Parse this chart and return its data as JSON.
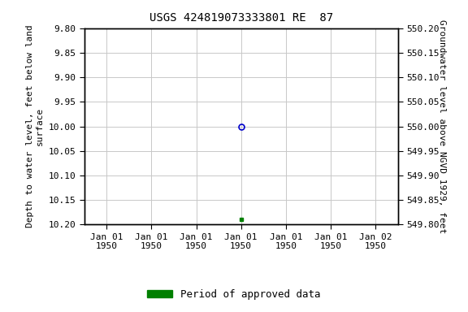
{
  "title": "USGS 424819073333801 RE  87",
  "ylabel_left_line1": "Depth to water level, feet below land",
  "ylabel_left_line2": "surface",
  "ylabel_right": "Groundwater level above NGVD 1929, feet",
  "ylim_left_top": 9.8,
  "ylim_left_bottom": 10.2,
  "ylim_right_top": 550.2,
  "ylim_right_bottom": 549.8,
  "left_ticks": [
    9.8,
    9.85,
    9.9,
    9.95,
    10.0,
    10.05,
    10.1,
    10.15,
    10.2
  ],
  "right_ticks": [
    550.2,
    550.15,
    550.1,
    550.05,
    550.0,
    549.95,
    549.9,
    549.85,
    549.8
  ],
  "point_blue_x": 3,
  "point_blue_y": 10.0,
  "point_green_x": 3,
  "point_green_y": 10.19,
  "x_tick_positions": [
    0,
    1,
    2,
    3,
    4,
    5,
    6
  ],
  "x_tick_labels": [
    "Jan 01\n1950",
    "Jan 01\n1950",
    "Jan 01\n1950",
    "Jan 01\n1950",
    "Jan 01\n1950",
    "Jan 01\n1950",
    "Jan 02\n1950"
  ],
  "xlim": [
    -0.5,
    6.5
  ],
  "bg_color": "#ffffff",
  "grid_color": "#c8c8c8",
  "legend_label": "Period of approved data",
  "legend_color": "#008000",
  "blue_marker_color": "#0000cc",
  "title_fontsize": 10,
  "axis_label_fontsize": 8,
  "tick_fontsize": 8,
  "legend_fontsize": 9
}
